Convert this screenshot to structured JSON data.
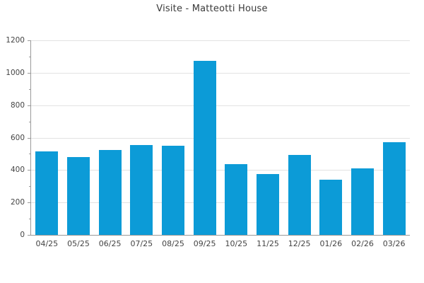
{
  "chart_data": {
    "type": "bar",
    "title": "Visite - Matteotti House",
    "categories": [
      "04/25",
      "05/25",
      "06/25",
      "07/25",
      "08/25",
      "09/25",
      "10/25",
      "11/25",
      "12/25",
      "01/26",
      "02/26",
      "03/26"
    ],
    "values": [
      515,
      480,
      525,
      555,
      550,
      1075,
      435,
      375,
      495,
      340,
      410,
      570
    ],
    "xlabel": "",
    "ylabel": "",
    "ylim": [
      0,
      1200
    ],
    "ytick_step": 200,
    "ytick_minor_step": 100,
    "grid": true,
    "legend": "none",
    "colors": {
      "bar": "#0c9bd7",
      "gridline": "#e2e2e2",
      "axis": "#999999",
      "tick_text": "#444444",
      "title_text": "#3a3a3a"
    }
  }
}
